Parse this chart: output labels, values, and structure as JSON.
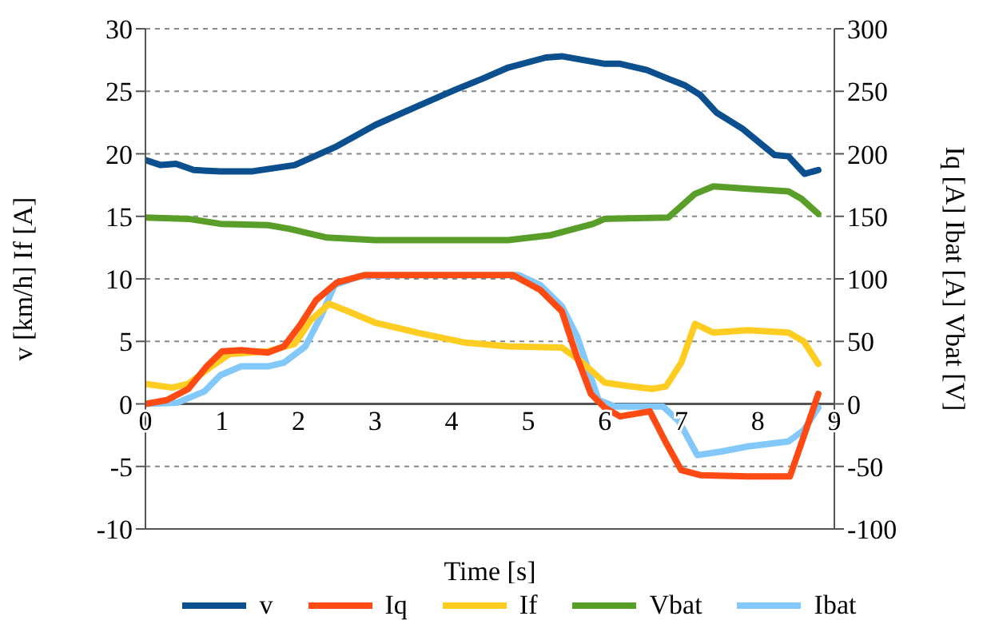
{
  "chart_data": {
    "type": "line",
    "xlabel": "Time [s]",
    "ylabel": "v [km/h] If [A]",
    "y2label": "Iq [A] Ibat [A] Vbat [V]",
    "xlim": [
      0,
      9
    ],
    "xticks": [
      0,
      1,
      2,
      3,
      4,
      5,
      6,
      7,
      8,
      9
    ],
    "ylim": [
      -10,
      30
    ],
    "yticks": [
      -10,
      -5,
      0,
      5,
      10,
      15,
      20,
      25,
      30
    ],
    "y2lim": [
      -100,
      300
    ],
    "y2ticks": [
      -100,
      -50,
      0,
      50,
      100,
      150,
      200,
      250,
      300
    ],
    "grid": true,
    "legend": "bottom",
    "marker": "none",
    "line_style": "solid",
    "series": [
      {
        "name": "v",
        "color": "#0b4f8f",
        "x": [
          0,
          0.2,
          0.4,
          0.63,
          0.98,
          1.4,
          1.95,
          2.5,
          3.0,
          3.55,
          4.04,
          4.4,
          4.74,
          5.23,
          5.44,
          6.0,
          6.2,
          6.55,
          6.83,
          7.04,
          7.25,
          7.46,
          7.8,
          8.22,
          8.4,
          8.61,
          8.79
        ],
        "values": [
          19.5,
          19.1,
          19.2,
          18.7,
          18.6,
          18.6,
          19.1,
          20.6,
          22.3,
          23.8,
          25.1,
          26.0,
          26.9,
          27.7,
          27.8,
          27.2,
          27.2,
          26.7,
          26.0,
          25.5,
          24.7,
          23.3,
          22.0,
          19.9,
          19.8,
          18.4,
          18.7
        ]
      },
      {
        "name": "Iq",
        "color": "#ff4a14",
        "axis": "y2",
        "x": [
          0,
          0.28,
          0.56,
          0.8,
          1.0,
          1.25,
          1.6,
          1.81,
          2.02,
          2.23,
          2.5,
          2.86,
          3.34,
          4.04,
          4.8,
          5.16,
          5.44,
          5.64,
          5.82,
          6.0,
          6.2,
          6.59,
          6.8,
          7.0,
          7.25,
          7.87,
          8.42,
          8.6,
          8.79
        ],
        "values": [
          0,
          3,
          12,
          30,
          42,
          43,
          41,
          46,
          63,
          83,
          97,
          103,
          103,
          103,
          103,
          91,
          74,
          37,
          8,
          -3,
          -10,
          -6,
          -31,
          -53,
          -57,
          -58,
          -58,
          -26,
          8
        ]
      },
      {
        "name": "If",
        "color": "#ffcc22",
        "x": [
          0,
          0.35,
          0.56,
          0.84,
          1.1,
          1.6,
          1.95,
          2.16,
          2.4,
          2.65,
          3.0,
          3.55,
          4.18,
          4.74,
          5.44,
          5.71,
          6.0,
          6.34,
          6.62,
          6.8,
          7.0,
          7.18,
          7.42,
          7.87,
          8.4,
          8.6,
          8.79
        ],
        "values": [
          1.6,
          1.3,
          1.6,
          2.9,
          4.0,
          4.2,
          4.8,
          6.7,
          8.0,
          7.4,
          6.5,
          5.7,
          4.9,
          4.6,
          4.5,
          3.3,
          1.7,
          1.4,
          1.2,
          1.4,
          3.3,
          6.4,
          5.7,
          5.9,
          5.7,
          5.0,
          3.2
        ]
      },
      {
        "name": "Vbat",
        "color": "#5a9e2a",
        "axis": "y2",
        "x": [
          0,
          0.56,
          0.98,
          1.6,
          1.88,
          2.37,
          3.0,
          4.74,
          5.3,
          5.85,
          6.0,
          6.83,
          7.18,
          7.42,
          7.87,
          8.4,
          8.57,
          8.79
        ],
        "values": [
          149,
          148,
          144,
          143,
          140,
          133,
          131,
          131,
          135,
          144,
          148,
          149,
          168,
          174,
          172,
          170,
          164,
          152
        ]
      },
      {
        "name": "Ibat",
        "color": "#82c8fa",
        "axis": "y2",
        "x": [
          0,
          0.42,
          0.77,
          0.98,
          1.25,
          1.6,
          1.81,
          2.09,
          2.3,
          2.47,
          2.79,
          3.34,
          4.04,
          4.88,
          5.16,
          5.44,
          5.64,
          5.92,
          6.13,
          6.76,
          6.97,
          7.21,
          7.53,
          7.87,
          8.4,
          8.6,
          8.79
        ],
        "values": [
          0,
          1,
          10,
          23,
          30,
          30,
          33,
          46,
          71,
          95,
          102,
          103,
          103,
          103,
          95,
          78,
          54,
          3,
          -2,
          -2,
          -14,
          -41,
          -38,
          -34,
          -30,
          -21,
          -3
        ]
      }
    ]
  }
}
